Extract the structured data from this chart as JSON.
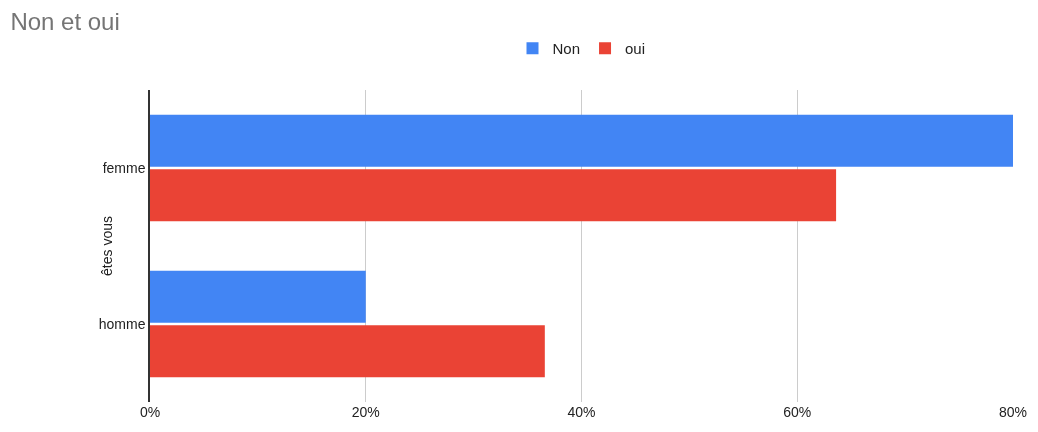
{
  "chart_data": {
    "type": "bar",
    "orientation": "horizontal",
    "title": "Non et oui",
    "ylabel": "êtes vous",
    "categories": [
      "femme",
      "homme"
    ],
    "series": [
      {
        "name": "Non",
        "color": "#4285f4",
        "values": [
          80,
          20
        ]
      },
      {
        "name": "oui",
        "color": "#ea4335",
        "values": [
          63.6,
          36.6
        ]
      }
    ],
    "xlim": [
      0,
      80
    ],
    "xticks": [
      {
        "value": 0,
        "label": "0%"
      },
      {
        "value": 20,
        "label": "20%"
      },
      {
        "value": 40,
        "label": "40%"
      },
      {
        "value": 60,
        "label": "60%"
      },
      {
        "value": 80,
        "label": "80%"
      }
    ],
    "grid": "x",
    "legend": "top"
  }
}
